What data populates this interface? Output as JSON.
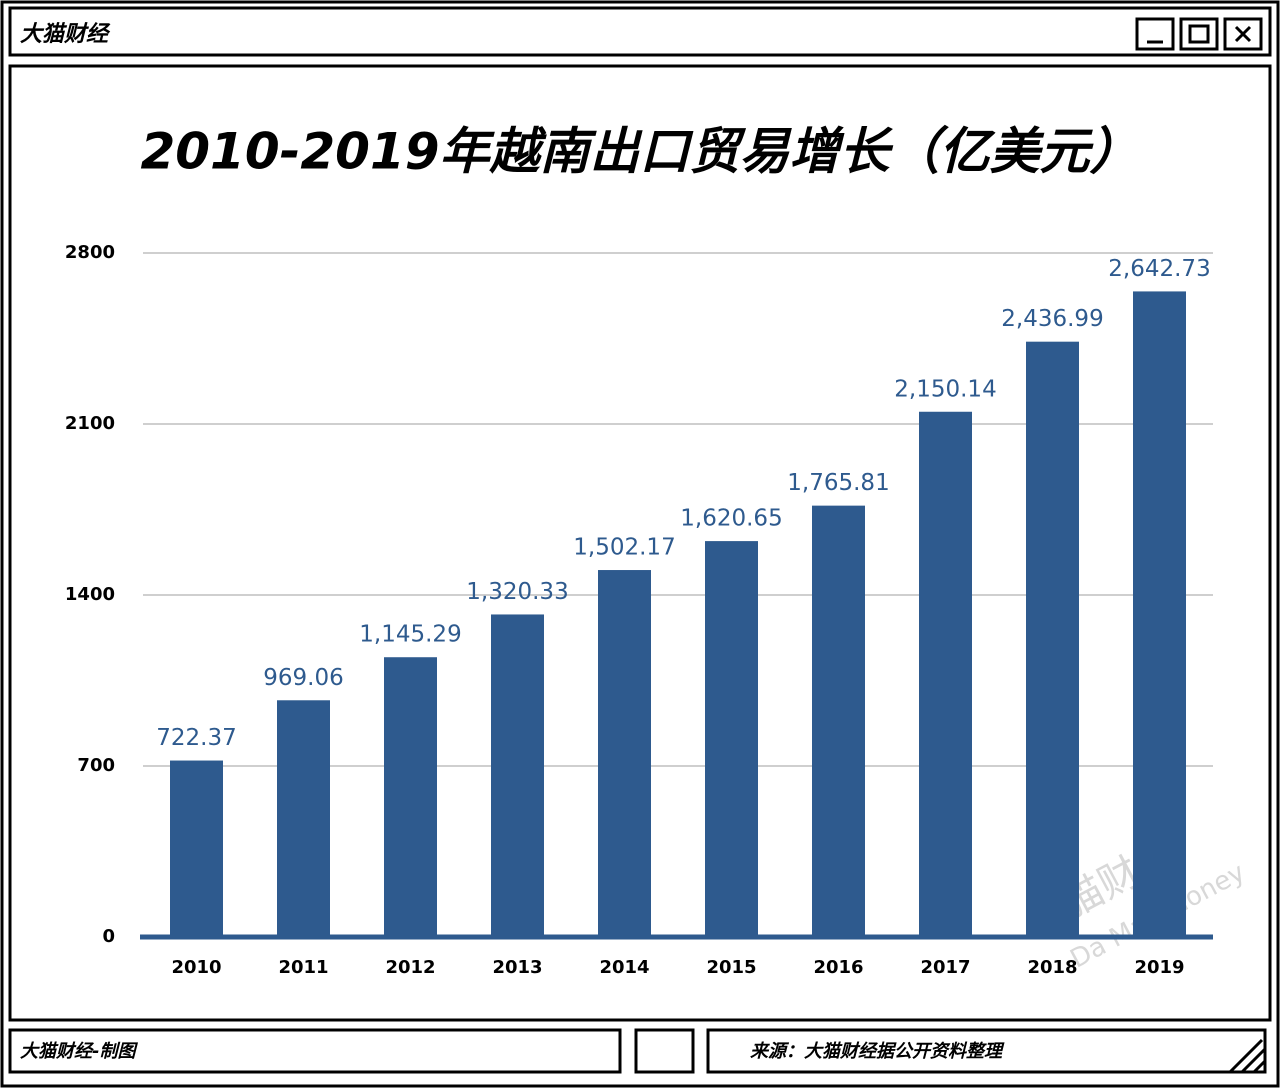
{
  "window": {
    "title": "大猫财经",
    "footer_left": "大猫财经-制图",
    "footer_right": "来源：大猫财经据公开资料整理",
    "watermark": [
      "大猫财经",
      "Da Mao Money"
    ]
  },
  "chart_data": {
    "type": "bar",
    "title": "2010-2019年越南出口贸易增长（亿美元）",
    "categories": [
      "2010",
      "2011",
      "2012",
      "2013",
      "2014",
      "2015",
      "2016",
      "2017",
      "2018",
      "2019"
    ],
    "values": [
      722.37,
      969.06,
      1145.29,
      1320.33,
      1502.17,
      1620.65,
      1765.81,
      2150.14,
      2436.99,
      2642.73
    ],
    "value_labels": [
      "722.37",
      "969.06",
      "1,145.29",
      "1,320.33",
      "1,502.17",
      "1,620.65",
      "1,765.81",
      "2,150.14",
      "2,436.99",
      "2,642.73"
    ],
    "color": "#2e5a8e",
    "ylim": [
      0,
      2800
    ],
    "yticks": [
      0,
      700,
      1400,
      2100,
      2800
    ],
    "grid": true
  }
}
